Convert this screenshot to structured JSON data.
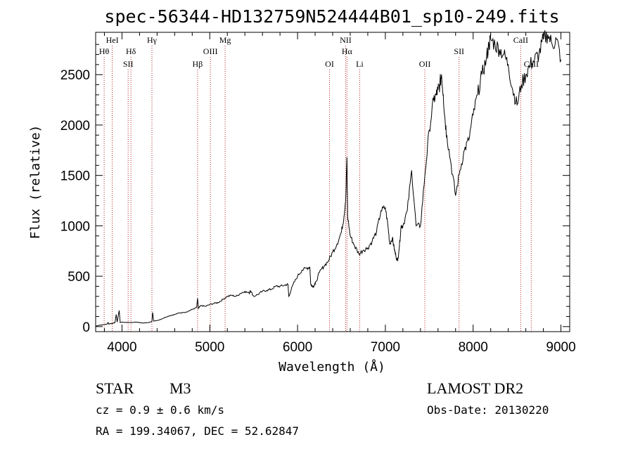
{
  "chart_data": {
    "type": "line",
    "title": "spec-56344-HD132759N524444B01_sp10-249.fits",
    "xlabel": "Wavelength (Å)",
    "ylabel": "Flux (relative)",
    "xlim": [
      3700,
      9100
    ],
    "ylim": [
      -50,
      2920
    ],
    "xticks": [
      4000,
      5000,
      6000,
      7000,
      8000,
      9000
    ],
    "yticks": [
      0,
      500,
      1000,
      1500,
      2000,
      2500
    ],
    "grid": false,
    "series": [
      {
        "x": [
          3700,
          3750,
          3800,
          3830,
          3840,
          3850,
          3870,
          3890,
          3900,
          3920,
          3934,
          3945,
          3968,
          3980,
          4000,
          4050,
          4100,
          4150,
          4200,
          4250,
          4300,
          4340,
          4350,
          4360,
          4400,
          4450,
          4500,
          4550,
          4600,
          4650,
          4700,
          4750,
          4800,
          4850,
          4861,
          4870,
          4900,
          4950,
          5000,
          5050,
          5100,
          5150,
          5200,
          5250,
          5300,
          5350,
          5400,
          5450,
          5460,
          5500,
          5550,
          5600,
          5650,
          5700,
          5750,
          5800,
          5850,
          5890,
          5900,
          5950,
          6000,
          6050,
          6100,
          6140,
          6150,
          6160,
          6180,
          6200,
          6250,
          6300,
          6350,
          6400,
          6450,
          6500,
          6530,
          6550,
          6562,
          6570,
          6600,
          6650,
          6700,
          6750,
          6800,
          6850,
          6900,
          6950,
          7000,
          7030,
          7050,
          7080,
          7100,
          7120,
          7140,
          7160,
          7180,
          7200,
          7250,
          7300,
          7350,
          7400,
          7450,
          7500,
          7550,
          7580,
          7600,
          7620,
          7640,
          7660,
          7680,
          7700,
          7750,
          7800,
          7850,
          7900,
          7950,
          8000,
          8050,
          8100,
          8150,
          8180,
          8200,
          8250,
          8300,
          8350,
          8400,
          8450,
          8500,
          8550,
          8600,
          8650,
          8700,
          8750,
          8800,
          8850,
          8900,
          8950,
          9000
        ],
        "values": [
          5,
          15,
          20,
          25,
          40,
          25,
          30,
          30,
          35,
          40,
          120,
          45,
          160,
          40,
          45,
          40,
          40,
          45,
          40,
          35,
          40,
          50,
          140,
          55,
          60,
          75,
          95,
          110,
          120,
          135,
          140,
          150,
          170,
          190,
          280,
          180,
          210,
          200,
          220,
          230,
          240,
          270,
          300,
          310,
          300,
          330,
          350,
          330,
          360,
          300,
          320,
          350,
          360,
          370,
          400,
          400,
          410,
          420,
          300,
          420,
          500,
          560,
          580,
          590,
          420,
          410,
          400,
          420,
          540,
          600,
          650,
          740,
          820,
          940,
          1100,
          1300,
          1680,
          1100,
          900,
          800,
          720,
          760,
          780,
          850,
          940,
          1150,
          1180,
          1000,
          820,
          880,
          780,
          700,
          650,
          800,
          1000,
          1000,
          1150,
          1550,
          1000,
          1000,
          1500,
          1950,
          2250,
          2300,
          2350,
          2400,
          2500,
          2300,
          2050,
          1900,
          1600,
          1300,
          1550,
          1750,
          1850,
          2100,
          2300,
          2500,
          2650,
          2800,
          2850,
          2800,
          2750,
          2700,
          2600,
          2350,
          2200,
          2400,
          2500,
          2600,
          2650,
          2700,
          2850,
          2900,
          2800,
          2850,
          2650
        ]
      }
    ],
    "line_marks": [
      {
        "label": "HeI",
        "x": 3889,
        "row": 0
      },
      {
        "label": "Hθ",
        "x": 3797,
        "row": 1
      },
      {
        "label": "Hδ",
        "x": 4102,
        "row": 1
      },
      {
        "label": "SII",
        "x": 4070,
        "row": 2
      },
      {
        "label": "Hγ",
        "x": 4341,
        "row": 0
      },
      {
        "label": "Hβ",
        "x": 4861,
        "row": 2
      },
      {
        "label": "OIII",
        "x": 5007,
        "row": 1
      },
      {
        "label": "Mg",
        "x": 5175,
        "row": 0
      },
      {
        "label": "OI",
        "x": 6364,
        "row": 2
      },
      {
        "label": "NII",
        "x": 6548,
        "row": 0
      },
      {
        "label": "Hα",
        "x": 6563,
        "row": 1
      },
      {
        "label": "Li",
        "x": 6708,
        "row": 2
      },
      {
        "label": "OII",
        "x": 7450,
        "row": 2
      },
      {
        "label": "SII",
        "x": 7840,
        "row": 1
      },
      {
        "label": "CaII",
        "x": 8542,
        "row": 0
      },
      {
        "label": "CaII",
        "x": 8662,
        "row": 2
      }
    ]
  },
  "info": {
    "object_class": "STAR",
    "subclass": "M3",
    "survey": "LAMOST DR2",
    "redshift": "cz = 0.9 ± 0.6 km/s",
    "obs_date": "Obs-Date: 20130220",
    "coords": "RA = 199.34067, DEC =  52.62847"
  },
  "colors": {
    "axis": "#000000",
    "spectrum": "#000000",
    "line_marker": "#b22222"
  }
}
